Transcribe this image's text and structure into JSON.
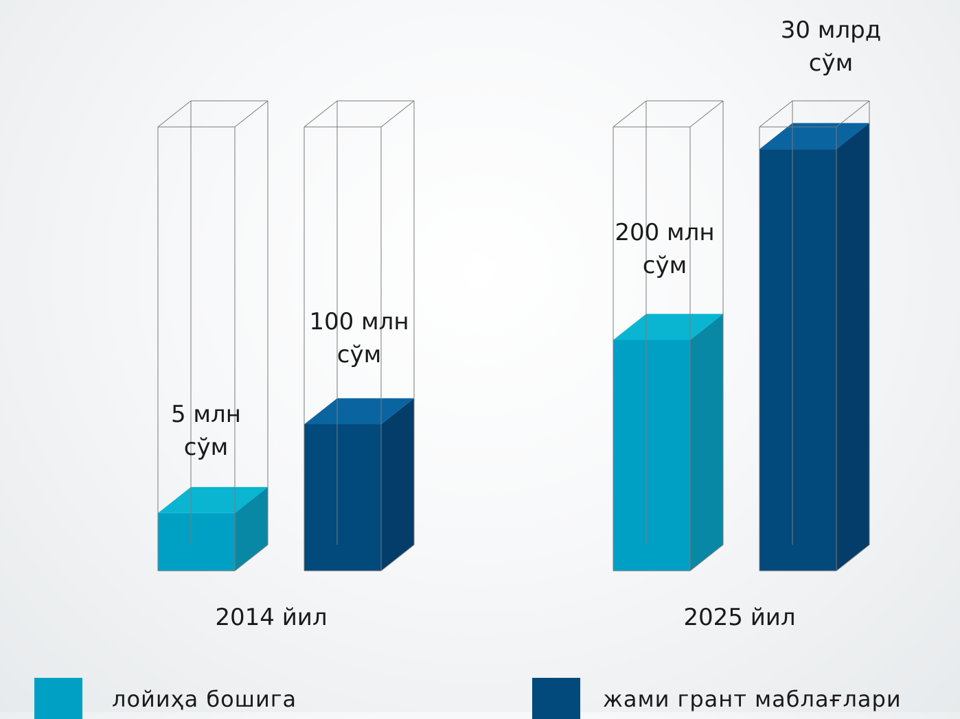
{
  "chart_data": {
    "type": "bar",
    "style": "3d-cylinder-glass",
    "categories": [
      "2014 йил",
      "2025 йил"
    ],
    "series": [
      {
        "name": "лойиҳа бошига",
        "values": [
          5,
          200
        ],
        "labels": [
          "5 млн\nсўм",
          "200 млн\nсўм"
        ],
        "fill_fraction": [
          0.13,
          0.52
        ],
        "color": "#00a0c4"
      },
      {
        "name": "жами грант маблағлари",
        "values": [
          100,
          30000
        ],
        "labels": [
          "100 млн\nсўм",
          "30 млрд\nсўм"
        ],
        "fill_fraction": [
          0.33,
          0.95
        ],
        "color": "#02497c"
      }
    ],
    "unit": "млн сўм",
    "legend": "bottom",
    "grid": false
  },
  "colors": {
    "light_front": "#00a0c4",
    "light_top": "#0ab5d2",
    "light_side": "#0988a6",
    "dark_front": "#02497c",
    "dark_top": "#0a64a0",
    "dark_side": "#043d69",
    "glass_line": "#7a7a7a"
  }
}
